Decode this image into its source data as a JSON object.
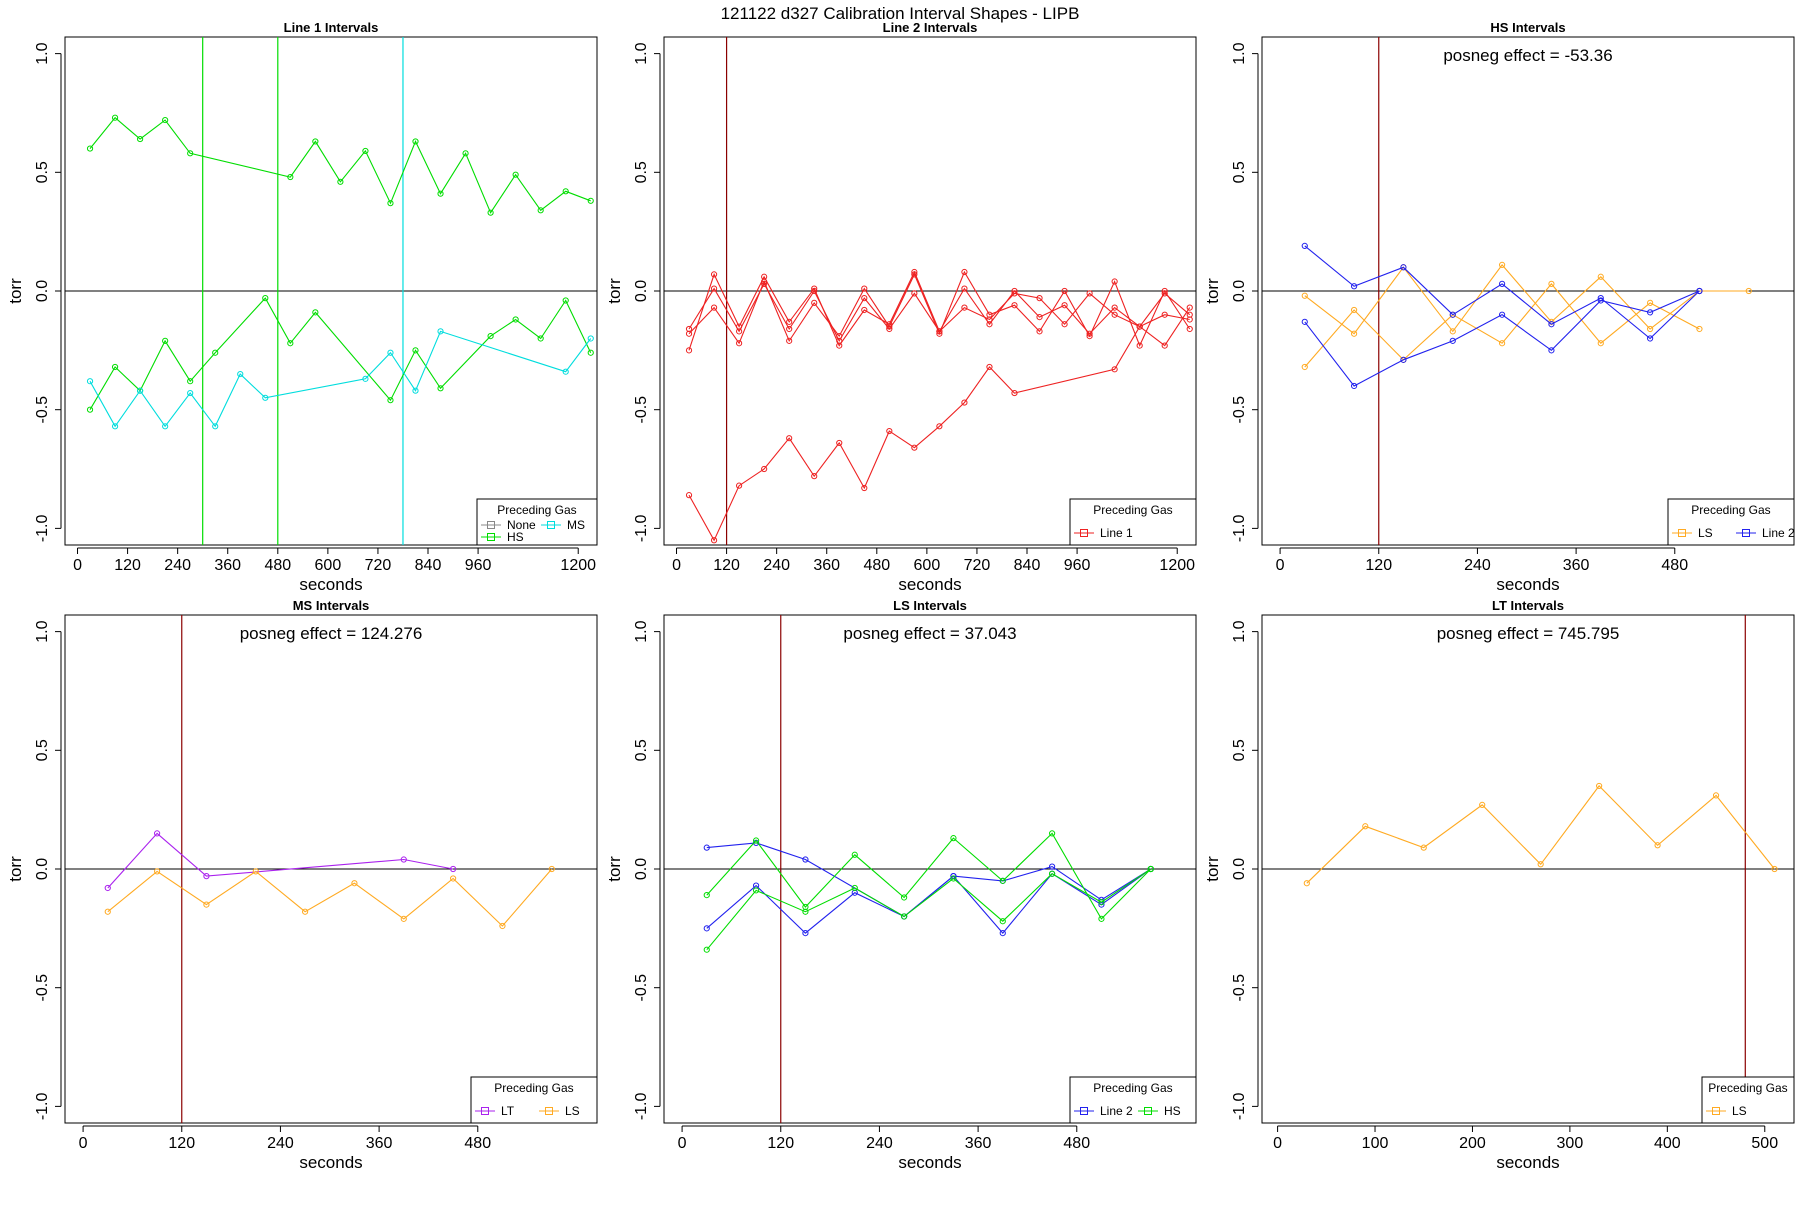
{
  "figure_title": "121122   d327   Calibration Interval Shapes - LIPB",
  "chart_data": [
    {
      "id": "line1",
      "type": "line",
      "title": "Line 1 Intervals",
      "xlabel": "seconds",
      "ylabel": "torr",
      "xlim": [
        -30,
        1245
      ],
      "ylim": [
        -1.07,
        1.07
      ],
      "xticks": [
        0,
        120,
        240,
        360,
        480,
        600,
        720,
        840,
        960,
        1200
      ],
      "xtick_labels": [
        "0",
        "120",
        "240",
        "360",
        "480",
        "600",
        "720",
        "840",
        "960",
        "1200"
      ],
      "yticks": [
        -1.0,
        -0.5,
        0.0,
        0.5,
        1.0
      ],
      "ytick_labels": [
        "-1.0",
        "-0.5",
        "0.0",
        "0.5",
        "1.0"
      ],
      "hlines": [
        0
      ],
      "vlines": [
        {
          "x": 300,
          "color": "#00dd00"
        },
        {
          "x": 480,
          "color": "#00dd00"
        },
        {
          "x": 780,
          "color": "#00dddd"
        }
      ],
      "annotation": "",
      "legend": {
        "title": "Preceding Gas",
        "position": "bottom-right",
        "entries": [
          {
            "label": "None",
            "color": "#888888"
          },
          {
            "label": "MS",
            "color": "#00dddd"
          },
          {
            "label": "HS",
            "color": "#00dd00"
          }
        ]
      },
      "series": [
        {
          "name": "HS",
          "color": "#00dd00",
          "x": [
            30,
            90,
            150,
            210,
            270,
            510,
            570,
            630,
            690,
            750,
            810,
            870,
            930,
            990,
            1050,
            1110,
            1170,
            1230
          ],
          "y": [
            0.6,
            0.73,
            0.64,
            0.72,
            0.58,
            0.48,
            0.63,
            0.46,
            0.59,
            0.37,
            0.63,
            0.41,
            0.58,
            0.33,
            0.49,
            0.34,
            0.42,
            0.38
          ]
        },
        {
          "name": "HS",
          "color": "#00dd00",
          "x": [
            30,
            90,
            150,
            210,
            270,
            330,
            450,
            510,
            570,
            750,
            810,
            870,
            990,
            1050,
            1110,
            1170,
            1230
          ],
          "y": [
            -0.5,
            -0.32,
            -0.42,
            -0.21,
            -0.38,
            -0.26,
            -0.03,
            -0.22,
            -0.09,
            -0.46,
            -0.25,
            -0.41,
            -0.19,
            -0.12,
            -0.2,
            -0.04,
            -0.26
          ]
        },
        {
          "name": "MS",
          "color": "#00dddd",
          "x": [
            30,
            90,
            150,
            210,
            270,
            330,
            390,
            450,
            690,
            750,
            810,
            870,
            1170,
            1230
          ],
          "y": [
            -0.38,
            -0.57,
            -0.42,
            -0.57,
            -0.43,
            -0.57,
            -0.35,
            -0.45,
            -0.37,
            -0.26,
            -0.42,
            -0.17,
            -0.34,
            -0.2
          ]
        }
      ]
    },
    {
      "id": "line2",
      "type": "line",
      "title": "Line 2 Intervals",
      "xlabel": "seconds",
      "ylabel": "torr",
      "xlim": [
        -30,
        1245
      ],
      "ylim": [
        -1.07,
        1.07
      ],
      "xticks": [
        0,
        120,
        240,
        360,
        480,
        600,
        720,
        840,
        960,
        1200
      ],
      "xtick_labels": [
        "0",
        "120",
        "240",
        "360",
        "480",
        "600",
        "720",
        "840",
        "960",
        "1200"
      ],
      "yticks": [
        -1.0,
        -0.5,
        0.0,
        0.5,
        1.0
      ],
      "ytick_labels": [
        "-1.0",
        "-0.5",
        "0.0",
        "0.5",
        "1.0"
      ],
      "hlines": [
        0
      ],
      "vlines": [
        {
          "x": 120,
          "color": "#8b0000"
        }
      ],
      "annotation": "",
      "legend": {
        "title": "Preceding Gas",
        "position": "bottom-right",
        "entries": [
          {
            "label": "Line 1",
            "color": "#ee2222"
          }
        ]
      },
      "series": [
        {
          "name": "Line 1",
          "color": "#ee2222",
          "x": [
            30,
            90,
            150,
            210,
            270,
            330,
            390,
            450,
            510,
            570,
            630,
            690,
            750,
            810,
            1050,
            1110,
            1170,
            1230
          ],
          "y": [
            -0.86,
            -1.05,
            -0.82,
            -0.75,
            -0.62,
            -0.78,
            -0.64,
            -0.83,
            -0.59,
            -0.66,
            -0.57,
            -0.47,
            -0.32,
            -0.43,
            -0.33,
            -0.15,
            -0.1,
            -0.12
          ]
        },
        {
          "name": "Line 1",
          "color": "#ee2222",
          "x": [
            30,
            90,
            150,
            210,
            270,
            330,
            390,
            450,
            510,
            570,
            630,
            690,
            750,
            810,
            870,
            930,
            990,
            1050,
            1110,
            1170,
            1230
          ],
          "y": [
            -0.25,
            0.07,
            -0.15,
            0.06,
            -0.13,
            0.01,
            -0.23,
            -0.08,
            -0.14,
            0.08,
            -0.17,
            0.01,
            -0.14,
            0.0,
            -0.11,
            -0.06,
            -0.18,
            -0.07,
            -0.15,
            -0.01,
            -0.1
          ]
        },
        {
          "name": "Line 1",
          "color": "#ee2222",
          "x": [
            30,
            90,
            150,
            210,
            270,
            330,
            390,
            450,
            510,
            570,
            630,
            690,
            750,
            810,
            870,
            930,
            990,
            1050,
            1110,
            1170,
            1230
          ],
          "y": [
            -0.18,
            -0.07,
            -0.22,
            0.04,
            -0.21,
            -0.05,
            -0.19,
            0.01,
            -0.15,
            0.07,
            -0.18,
            0.08,
            -0.1,
            -0.06,
            -0.17,
            0.0,
            -0.19,
            0.04,
            -0.23,
            0.0,
            -0.16
          ]
        },
        {
          "name": "Line 1",
          "color": "#ee2222",
          "x": [
            30,
            90,
            150,
            210,
            270,
            330,
            390,
            450,
            510,
            570,
            630,
            690,
            750,
            810,
            870,
            930,
            990,
            1050,
            1110,
            1170,
            1230
          ],
          "y": [
            -0.16,
            0.01,
            -0.17,
            0.03,
            -0.16,
            0.0,
            -0.21,
            -0.03,
            -0.16,
            -0.01,
            -0.17,
            -0.07,
            -0.12,
            -0.01,
            -0.03,
            -0.14,
            -0.01,
            -0.1,
            -0.15,
            -0.23,
            -0.07
          ]
        }
      ]
    },
    {
      "id": "hs",
      "type": "line",
      "title": "HS Intervals",
      "xlabel": "seconds",
      "ylabel": "torr",
      "xlim": [
        -22,
        625
      ],
      "ylim": [
        -1.07,
        1.07
      ],
      "xticks": [
        0,
        120,
        240,
        360,
        480
      ],
      "xtick_labels": [
        "0",
        "120",
        "240",
        "360",
        "480"
      ],
      "yticks": [
        -1.0,
        -0.5,
        0.0,
        0.5,
        1.0
      ],
      "ytick_labels": [
        "-1.0",
        "-0.5",
        "0.0",
        "0.5",
        "1.0"
      ],
      "hlines": [
        0
      ],
      "vlines": [
        {
          "x": 120,
          "color": "#8b0000"
        }
      ],
      "annotation": "posneg effect = -53.36",
      "legend": {
        "title": "Preceding Gas",
        "position": "bottom-right",
        "entries": [
          {
            "label": "LS",
            "color": "#ffaa22"
          },
          {
            "label": "Line 2",
            "color": "#2222ee"
          }
        ]
      },
      "series": [
        {
          "name": "LS",
          "color": "#ffaa22",
          "x": [
            30,
            90,
            150,
            210,
            270,
            330,
            390,
            450,
            510,
            570
          ],
          "y": [
            -0.02,
            -0.18,
            0.1,
            -0.17,
            0.11,
            -0.13,
            0.06,
            -0.16,
            0.0,
            0.0
          ]
        },
        {
          "name": "LS",
          "color": "#ffaa22",
          "x": [
            30,
            90,
            150,
            210,
            270,
            330,
            390,
            450,
            510
          ],
          "y": [
            -0.32,
            -0.08,
            -0.29,
            -0.1,
            -0.22,
            0.03,
            -0.22,
            -0.05,
            -0.16
          ]
        },
        {
          "name": "Line 2",
          "color": "#2222ee",
          "x": [
            30,
            90,
            150,
            210,
            270,
            330,
            390,
            450,
            510
          ],
          "y": [
            0.19,
            0.02,
            0.1,
            -0.1,
            0.03,
            -0.14,
            -0.03,
            -0.2,
            0.0
          ]
        },
        {
          "name": "Line 2",
          "color": "#2222ee",
          "x": [
            30,
            90,
            150,
            210,
            270,
            330,
            390,
            450,
            510
          ],
          "y": [
            -0.13,
            -0.4,
            -0.29,
            -0.21,
            -0.1,
            -0.25,
            -0.04,
            -0.09,
            0.0
          ]
        }
      ]
    },
    {
      "id": "ms",
      "type": "line",
      "title": "MS Intervals",
      "xlabel": "seconds",
      "ylabel": "torr",
      "xlim": [
        -22,
        625
      ],
      "ylim": [
        -1.07,
        1.07
      ],
      "xticks": [
        0,
        120,
        240,
        360,
        480
      ],
      "xtick_labels": [
        "0",
        "120",
        "240",
        "360",
        "480"
      ],
      "yticks": [
        -1.0,
        -0.5,
        0.0,
        0.5,
        1.0
      ],
      "ytick_labels": [
        "-1.0",
        "-0.5",
        "0.0",
        "0.5",
        "1.0"
      ],
      "hlines": [
        0
      ],
      "vlines": [
        {
          "x": 120,
          "color": "#8b0000"
        }
      ],
      "annotation": "posneg effect = 124.276",
      "legend": {
        "title": "Preceding Gas",
        "position": "bottom-right",
        "entries": [
          {
            "label": "LT",
            "color": "#aa22ee"
          },
          {
            "label": "LS",
            "color": "#ffaa22"
          }
        ]
      },
      "series": [
        {
          "name": "LT",
          "color": "#aa22ee",
          "x": [
            30,
            90,
            150,
            390,
            450
          ],
          "y": [
            -0.08,
            0.15,
            -0.03,
            0.04,
            0.0
          ]
        },
        {
          "name": "LS",
          "color": "#ffaa22",
          "x": [
            30,
            90,
            150,
            210,
            270,
            330,
            390,
            450,
            510,
            570
          ],
          "y": [
            -0.18,
            -0.01,
            -0.15,
            -0.01,
            -0.18,
            -0.06,
            -0.21,
            -0.04,
            -0.24,
            0.0
          ]
        }
      ]
    },
    {
      "id": "ls",
      "type": "line",
      "title": "LS Intervals",
      "xlabel": "seconds",
      "ylabel": "torr",
      "xlim": [
        -22,
        625
      ],
      "ylim": [
        -1.07,
        1.07
      ],
      "xticks": [
        0,
        120,
        240,
        360,
        480
      ],
      "xtick_labels": [
        "0",
        "120",
        "240",
        "360",
        "480"
      ],
      "yticks": [
        -1.0,
        -0.5,
        0.0,
        0.5,
        1.0
      ],
      "ytick_labels": [
        "-1.0",
        "-0.5",
        "0.0",
        "0.5",
        "1.0"
      ],
      "hlines": [
        0
      ],
      "vlines": [
        {
          "x": 120,
          "color": "#8b0000"
        }
      ],
      "annotation": "posneg effect = 37.043",
      "legend": {
        "title": "Preceding Gas",
        "position": "bottom-right",
        "entries": [
          {
            "label": "Line 2",
            "color": "#2222ee"
          },
          {
            "label": "HS",
            "color": "#00dd00"
          }
        ]
      },
      "series": [
        {
          "name": "Line 2",
          "color": "#2222ee",
          "x": [
            30,
            90,
            150,
            270,
            330,
            390,
            450,
            510,
            570
          ],
          "y": [
            0.09,
            0.11,
            0.04,
            -0.2,
            -0.03,
            -0.05,
            0.01,
            -0.13,
            0.0
          ]
        },
        {
          "name": "Line 2",
          "color": "#2222ee",
          "x": [
            30,
            90,
            150,
            210,
            270,
            330,
            390,
            450,
            510,
            570
          ],
          "y": [
            -0.25,
            -0.07,
            -0.27,
            -0.1,
            -0.2,
            -0.03,
            -0.27,
            -0.02,
            -0.15,
            0.0
          ]
        },
        {
          "name": "HS",
          "color": "#00dd00",
          "x": [
            30,
            90,
            150,
            210,
            270,
            330,
            390,
            450,
            510,
            570
          ],
          "y": [
            -0.11,
            0.12,
            -0.16,
            0.06,
            -0.12,
            0.13,
            -0.05,
            0.15,
            -0.21,
            0.0
          ]
        },
        {
          "name": "HS",
          "color": "#00dd00",
          "x": [
            30,
            90,
            150,
            210,
            270,
            330,
            390,
            450,
            510,
            570
          ],
          "y": [
            -0.34,
            -0.09,
            -0.18,
            -0.08,
            -0.2,
            -0.04,
            -0.22,
            -0.02,
            -0.14,
            0.0
          ]
        }
      ]
    },
    {
      "id": "lt",
      "type": "line",
      "title": "LT Intervals",
      "xlabel": "seconds",
      "ylabel": "torr",
      "xlim": [
        -16,
        530
      ],
      "ylim": [
        -1.07,
        1.07
      ],
      "xticks": [
        0,
        100,
        200,
        300,
        400,
        500
      ],
      "xtick_labels": [
        "0",
        "100",
        "200",
        "300",
        "400",
        "500"
      ],
      "yticks": [
        -1.0,
        -0.5,
        0.0,
        0.5,
        1.0
      ],
      "ytick_labels": [
        "-1.0",
        "-0.5",
        "0.0",
        "0.5",
        "1.0"
      ],
      "hlines": [
        0
      ],
      "vlines": [
        {
          "x": 480,
          "color": "#8b0000"
        }
      ],
      "annotation": "posneg effect = 745.795",
      "legend": {
        "title": "Preceding Gas",
        "position": "bottom-right",
        "entries": [
          {
            "label": "LS",
            "color": "#ffaa22"
          }
        ]
      },
      "series": [
        {
          "name": "LS",
          "color": "#ffaa22",
          "x": [
            30,
            90,
            150,
            210,
            270,
            330,
            390,
            450,
            510
          ],
          "y": [
            -0.06,
            0.18,
            0.09,
            0.27,
            0.02,
            0.35,
            0.1,
            0.31,
            0.0
          ]
        }
      ]
    }
  ]
}
